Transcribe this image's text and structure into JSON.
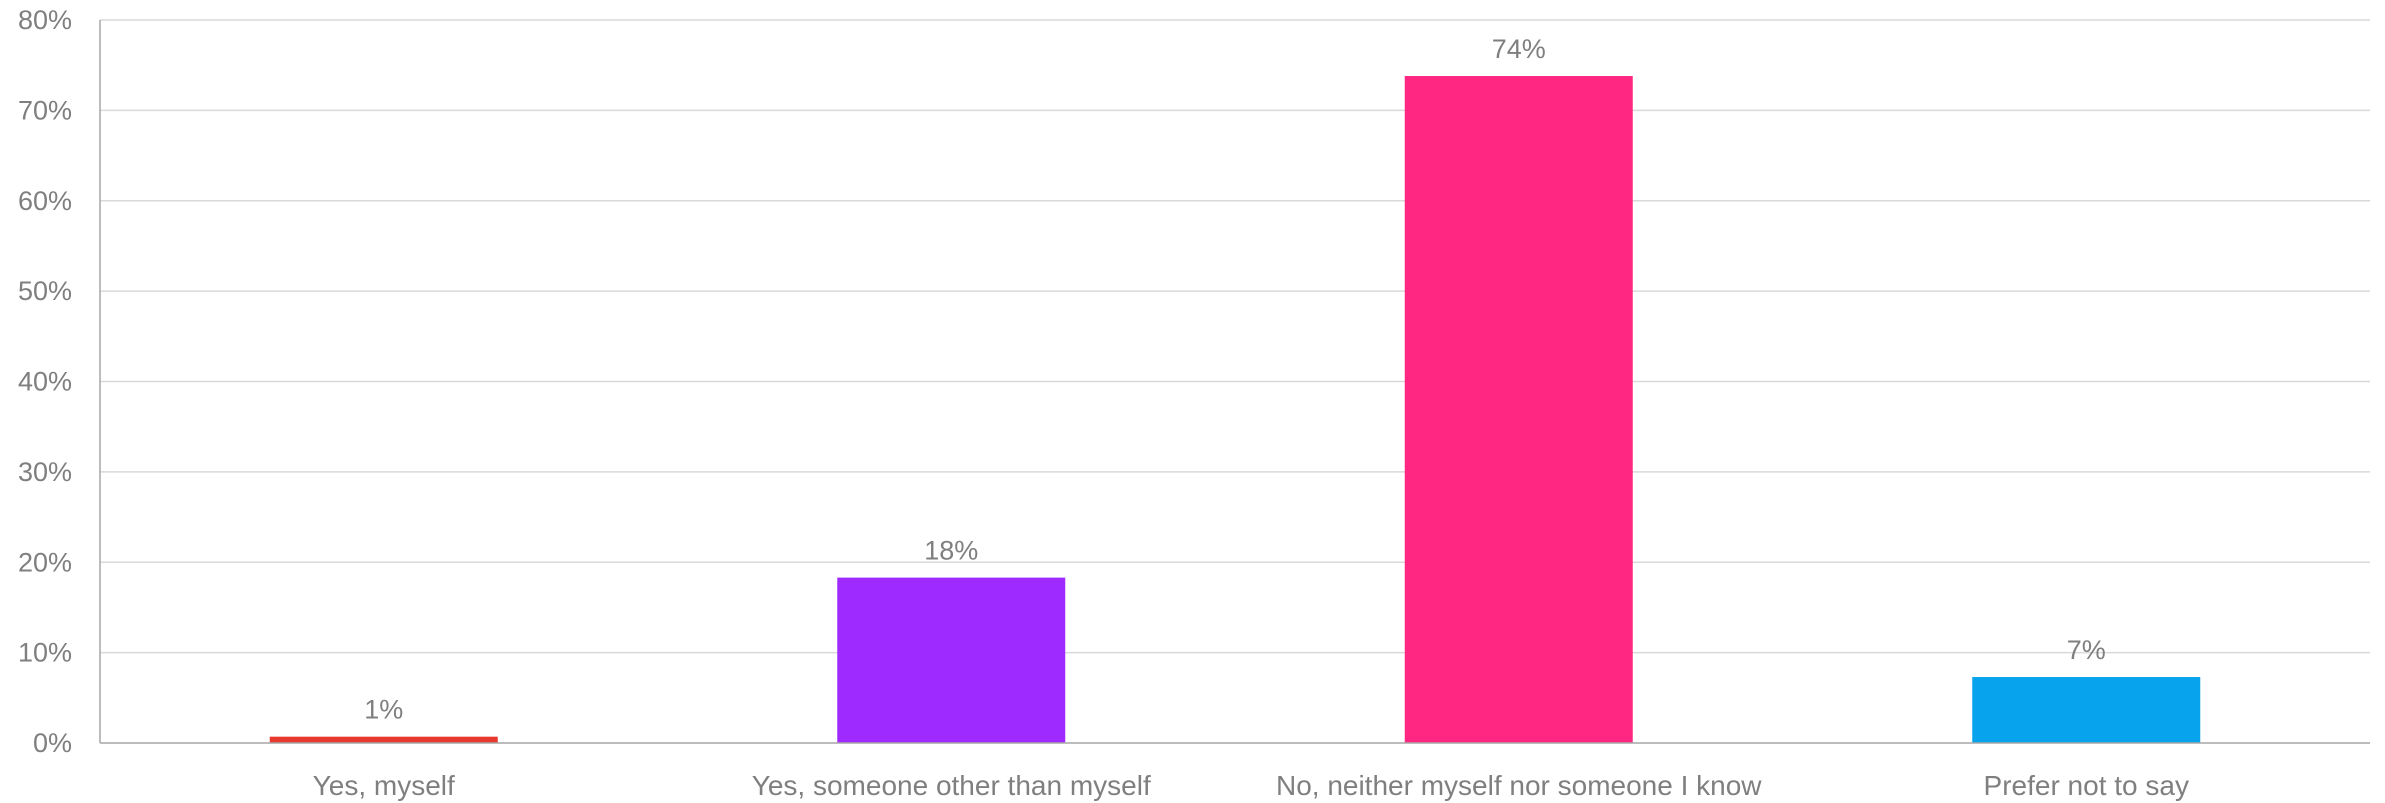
{
  "chart_data": {
    "type": "bar",
    "title": "",
    "xlabel": "",
    "ylabel": "",
    "categories": [
      "Yes, myself",
      "Yes, someone other than myself",
      "No, neither myself nor someone I know",
      "Prefer not to say"
    ],
    "values": [
      0.7,
      18.3,
      73.8,
      7.3
    ],
    "data_labels": [
      "1%",
      "18%",
      "74%",
      "7%"
    ],
    "bar_colors": [
      "#e8392e",
      "#9f2aff",
      "#ff2781",
      "#07a3ec"
    ],
    "ylim": [
      0,
      80
    ],
    "yticks": [
      0,
      10,
      20,
      30,
      40,
      50,
      60,
      70,
      80
    ],
    "ytick_labels": [
      "0%",
      "10%",
      "20%",
      "30%",
      "40%",
      "50%",
      "60%",
      "70%",
      "80%"
    ],
    "grid": true,
    "legend": "none",
    "gridline_color": "#d9d9d9",
    "axis_color": "#a6a6a6",
    "text_color": "#7f7f7f"
  }
}
